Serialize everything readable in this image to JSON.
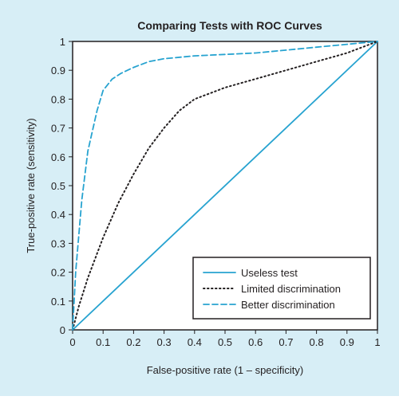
{
  "chart_data": {
    "type": "line",
    "title": "Comparing Tests with ROC Curves",
    "xlabel": "False-positive rate (1 – specificity)",
    "ylabel": "True-positive rate (sensitivity)",
    "xlim": [
      0,
      1
    ],
    "ylim": [
      0,
      1
    ],
    "x_ticks": [
      "0",
      "0.1",
      "0.2",
      "0.3",
      "0.4",
      "0.5",
      "0.6",
      "0.7",
      "0.8",
      "0.9",
      "1"
    ],
    "y_ticks": [
      "0",
      "0.1",
      "0.2",
      "0.3",
      "0.4",
      "0.5",
      "0.6",
      "0.7",
      "0.8",
      "0.9",
      "1"
    ],
    "grid": false,
    "legend_position": "bottom-right",
    "series": [
      {
        "name": "Useless test",
        "style": "solid",
        "color": "#27a3d0",
        "x": [
          0,
          1
        ],
        "y": [
          0,
          1
        ]
      },
      {
        "name": "Limited discrimination",
        "style": "dotted",
        "color": "#231f20",
        "x": [
          0,
          0.02,
          0.05,
          0.1,
          0.15,
          0.2,
          0.25,
          0.3,
          0.35,
          0.4,
          0.45,
          0.5,
          0.6,
          0.7,
          0.8,
          0.9,
          1
        ],
        "y": [
          0,
          0.08,
          0.18,
          0.32,
          0.44,
          0.54,
          0.63,
          0.7,
          0.76,
          0.8,
          0.82,
          0.84,
          0.87,
          0.9,
          0.93,
          0.96,
          1
        ]
      },
      {
        "name": "Better discrimination",
        "style": "dashed",
        "color": "#27a3d0",
        "x": [
          0,
          0.01,
          0.03,
          0.05,
          0.08,
          0.1,
          0.13,
          0.16,
          0.2,
          0.25,
          0.3,
          0.4,
          0.5,
          0.6,
          0.7,
          0.8,
          0.9,
          1
        ],
        "y": [
          0,
          0.2,
          0.45,
          0.62,
          0.76,
          0.83,
          0.87,
          0.89,
          0.91,
          0.93,
          0.94,
          0.95,
          0.955,
          0.96,
          0.97,
          0.98,
          0.99,
          1
        ]
      }
    ]
  }
}
